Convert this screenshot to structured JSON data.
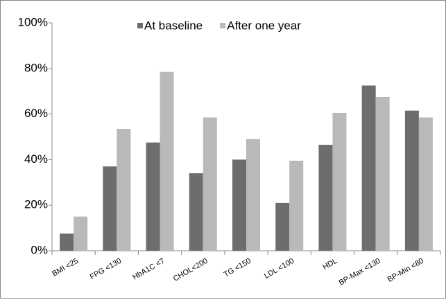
{
  "chart_data": {
    "type": "bar",
    "categories": [
      "BMI <25",
      "FPG <130",
      "HbA1C <7",
      "CHOL<200",
      "TG <150",
      "LDL <100",
      "HDL",
      "BP-Max <130",
      "BP-Min <80"
    ],
    "series": [
      {
        "name": "At baseline",
        "color": "#6d6d6d",
        "values": [
          7.5,
          37,
          47.5,
          34,
          40,
          21,
          46.5,
          72.5,
          61.5
        ]
      },
      {
        "name": "After one year",
        "color": "#b9b9b9",
        "values": [
          15,
          53.5,
          78.5,
          58.5,
          49,
          39.5,
          60.5,
          67.5,
          58.5
        ]
      }
    ],
    "ylim": [
      0,
      100
    ],
    "yticks": [
      {
        "value": 0,
        "label": "0%"
      },
      {
        "value": 20,
        "label": "20%"
      },
      {
        "value": 40,
        "label": "40%"
      },
      {
        "value": 60,
        "label": "60%"
      },
      {
        "value": 80,
        "label": "80%"
      },
      {
        "value": 100,
        "label": "100%"
      }
    ],
    "legend": "top"
  }
}
